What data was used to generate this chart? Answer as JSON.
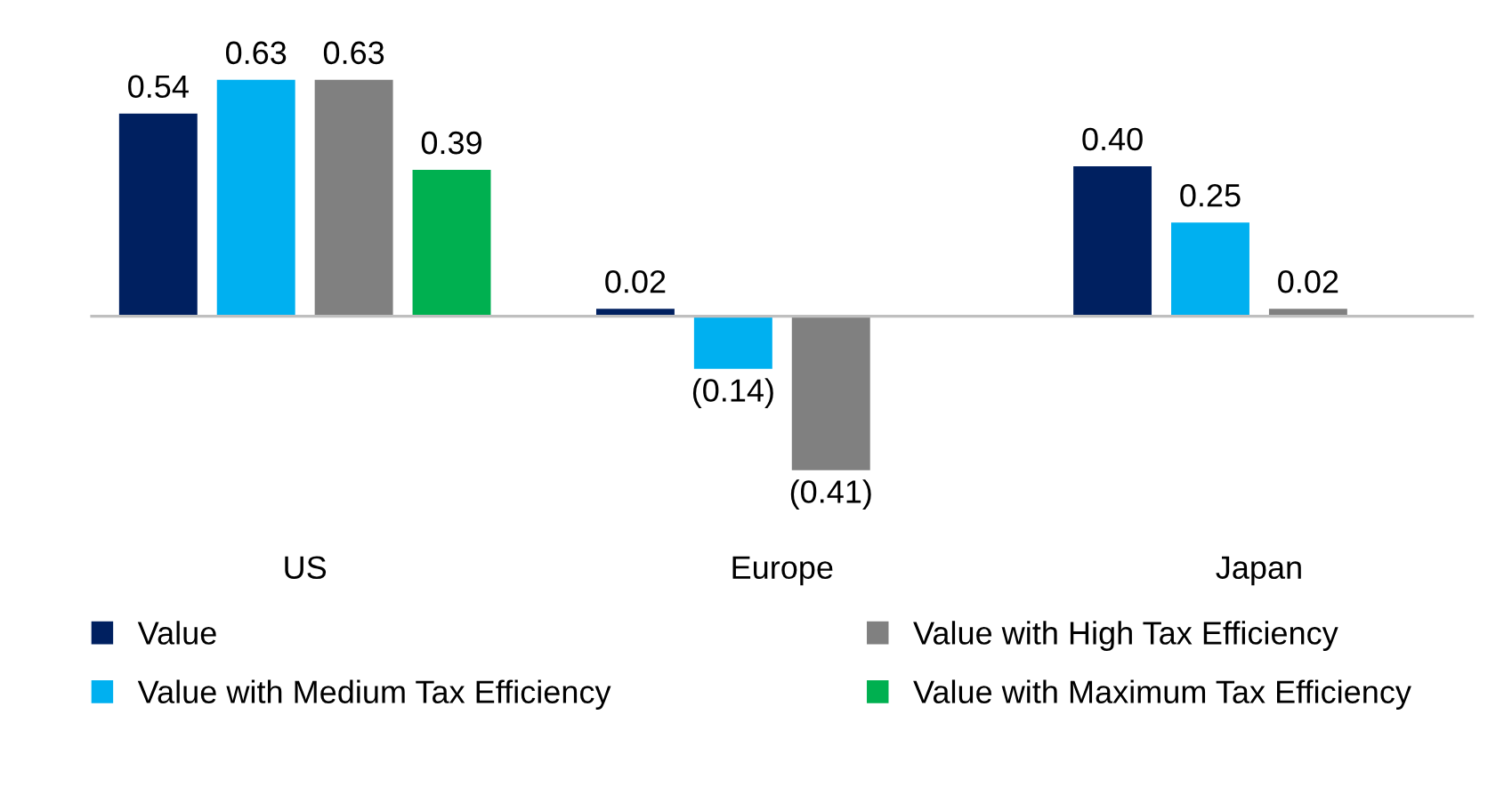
{
  "chart_data": {
    "type": "bar",
    "categories": [
      "US",
      "Europe",
      "Japan"
    ],
    "series": [
      {
        "name": "Value",
        "color": "#002060",
        "values": [
          0.54,
          0.02,
          0.4
        ],
        "value_labels": [
          "0.54",
          "0.02",
          "0.40"
        ]
      },
      {
        "name": "Value with Medium Tax Efficiency",
        "color": "#00b0f0",
        "values": [
          0.63,
          -0.14,
          0.25
        ],
        "value_labels": [
          "0.63",
          "(0.14)",
          "0.25"
        ]
      },
      {
        "name": "Value with High Tax Efficiency",
        "color": "#808080",
        "values": [
          0.63,
          -0.41,
          0.02
        ],
        "value_labels": [
          "0.63",
          "(0.41)",
          "0.02"
        ]
      },
      {
        "name": "Value with Maximum Tax Efficiency",
        "color": "#00b050",
        "values": [
          0.39,
          null,
          null
        ],
        "value_labels": [
          "0.39",
          null,
          null
        ]
      }
    ],
    "legend": "bottom",
    "grid": false
  }
}
